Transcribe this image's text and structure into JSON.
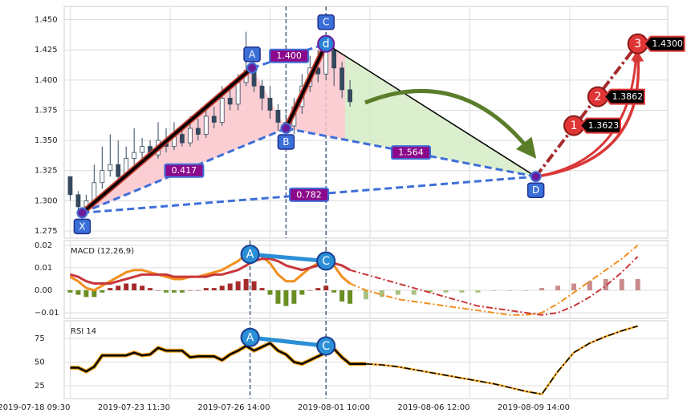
{
  "chart_data": [
    {
      "type": "candlestick",
      "ylim": [
        1.269,
        1.461
      ],
      "yticks": [
        1.275,
        {
          "value": 1.3,
          "label": "1.300"
        },
        1.325,
        {
          "value": 1.35,
          "label": "1.350"
        },
        1.375,
        {
          "value": 1.4,
          "label": "1.400"
        },
        1.425,
        {
          "value": 1.45,
          "label": "1.450"
        }
      ],
      "grid": true,
      "x": [
        0,
        4,
        8,
        12,
        16,
        20,
        24,
        28,
        32,
        36,
        40,
        44,
        48,
        52,
        56,
        60,
        64,
        68,
        72,
        76,
        80,
        84,
        88,
        92,
        96,
        100,
        104,
        108,
        112,
        116,
        120,
        124,
        128,
        132,
        136,
        140
      ],
      "open": [
        1.32,
        1.305,
        1.295,
        1.3,
        1.315,
        1.325,
        1.33,
        1.32,
        1.335,
        1.34,
        1.345,
        1.338,
        1.35,
        1.345,
        1.355,
        1.348,
        1.36,
        1.355,
        1.37,
        1.365,
        1.385,
        1.38,
        1.398,
        1.408,
        1.395,
        1.385,
        1.375,
        1.365,
        1.362,
        1.378,
        1.395,
        1.41,
        1.405,
        1.425,
        1.41,
        1.392
      ],
      "high": [
        1.32,
        1.308,
        1.305,
        1.33,
        1.345,
        1.355,
        1.35,
        1.345,
        1.36,
        1.352,
        1.35,
        1.365,
        1.36,
        1.365,
        1.362,
        1.37,
        1.368,
        1.38,
        1.378,
        1.395,
        1.398,
        1.405,
        1.44,
        1.425,
        1.4,
        1.395,
        1.38,
        1.372,
        1.385,
        1.405,
        1.42,
        1.425,
        1.432,
        1.428,
        1.415,
        1.4
      ],
      "low": [
        1.3,
        1.292,
        1.29,
        1.298,
        1.31,
        1.32,
        1.315,
        1.318,
        1.33,
        1.335,
        1.335,
        1.335,
        1.34,
        1.342,
        1.345,
        1.345,
        1.35,
        1.352,
        1.36,
        1.362,
        1.375,
        1.375,
        1.395,
        1.39,
        1.375,
        1.368,
        1.358,
        1.358,
        1.355,
        1.372,
        1.39,
        1.398,
        1.4,
        1.395,
        1.385,
        1.378
      ],
      "close": [
        1.305,
        1.295,
        1.3,
        1.315,
        1.325,
        1.33,
        1.32,
        1.335,
        1.34,
        1.345,
        1.338,
        1.35,
        1.345,
        1.355,
        1.348,
        1.36,
        1.355,
        1.37,
        1.365,
        1.385,
        1.38,
        1.398,
        1.408,
        1.395,
        1.385,
        1.375,
        1.365,
        1.362,
        1.378,
        1.395,
        1.41,
        1.405,
        1.425,
        1.41,
        1.392,
        1.382
      ],
      "up_color": "#ffffff",
      "down_color": "#34495e",
      "vlines": [
        108,
        128
      ],
      "pattern": {
        "labels": [
          "X",
          "A",
          "B",
          "C",
          "D"
        ],
        "x": [
          6,
          91,
          108,
          128,
          233
        ],
        "y": [
          1.29,
          1.41,
          1.36,
          1.43,
          1.32
        ],
        "d_label": "d",
        "ratio_labels": [
          "0.417",
          "1.400",
          "1.564",
          "0.782"
        ],
        "fill_color": "#f9c6cb",
        "projection_fill_color": "#d5ecc6",
        "leg_color": "#000000",
        "ratio_line_color": "#3f6fd8"
      },
      "targets": {
        "names": [
          "1",
          "2",
          "3"
        ],
        "x": [
          252,
          264,
          284
        ],
        "values": [
          1.3623,
          1.3862,
          1.43
        ],
        "value_labels": [
          "1.3623",
          "1.3862",
          "1.4300"
        ],
        "color": "#e03535"
      }
    },
    {
      "type": "macd",
      "title": "MACD (12,26,9)",
      "ylim": [
        -0.0125,
        0.0221
      ],
      "yticks": [
        {
          "value": -0.01,
          "label": "−0.01"
        },
        {
          "value": 0,
          "label": "0.00"
        },
        0.01,
        0.02
      ],
      "grid": true,
      "lines": [
        {
          "color": "#f28e1c",
          "x": [
            0,
            4,
            8,
            12,
            16,
            20,
            24,
            28,
            32,
            36,
            40,
            44,
            48,
            52,
            56,
            60,
            64,
            68,
            72,
            76,
            80,
            84,
            88,
            92,
            96,
            100,
            104,
            108,
            112,
            116,
            120,
            124,
            128,
            132,
            136,
            140
          ],
          "values": [
            0.006,
            0.004,
            0.001,
            0,
            0.002,
            0.004,
            0.006,
            0.008,
            0.009,
            0.009,
            0.008,
            0.007,
            0.006,
            0.005,
            0.005,
            0.006,
            0.006,
            0.007,
            0.008,
            0.009,
            0.011,
            0.013,
            0.016,
            0.017,
            0.015,
            0.012,
            0.007,
            0.004,
            0.004,
            0.007,
            0.01,
            0.012,
            0.014,
            0.011,
            0.006,
            0.003
          ]
        },
        {
          "color": "#c8373b",
          "x": [
            0,
            4,
            8,
            12,
            16,
            20,
            24,
            28,
            32,
            36,
            40,
            44,
            48,
            52,
            56,
            60,
            64,
            68,
            72,
            76,
            80,
            84,
            88,
            92,
            96,
            100,
            104,
            108,
            112,
            116,
            120,
            124,
            128,
            132,
            136,
            140
          ],
          "values": [
            0.007,
            0.006,
            0.004,
            0.003,
            0.003,
            0.003,
            0.004,
            0.005,
            0.006,
            0.007,
            0.007,
            0.007,
            0.007,
            0.006,
            0.006,
            0.006,
            0.006,
            0.006,
            0.007,
            0.007,
            0.008,
            0.009,
            0.011,
            0.013,
            0.014,
            0.014,
            0.013,
            0.011,
            0.01,
            0.009,
            0.01,
            0.011,
            0.012,
            0.012,
            0.011,
            0.009
          ]
        }
      ],
      "projections": [
        {
          "color": "#f28e1c",
          "x": [
            140,
            148,
            156,
            164,
            172,
            180,
            188,
            196,
            204,
            212,
            220,
            228,
            236,
            244,
            252,
            260,
            268,
            276,
            284
          ],
          "values": [
            0.003,
            0,
            -0.002,
            -0.004,
            -0.005,
            -0.006,
            -0.007,
            -0.008,
            -0.009,
            -0.01,
            -0.011,
            -0.011,
            -0.01,
            -0.006,
            -0.001,
            0.004,
            0.009,
            0.014,
            0.02
          ]
        },
        {
          "color": "#c8373b",
          "x": [
            140,
            148,
            156,
            164,
            172,
            180,
            188,
            196,
            204,
            212,
            220,
            228,
            236,
            244,
            252,
            260,
            268,
            276,
            284
          ],
          "values": [
            0.009,
            0.007,
            0.005,
            0.003,
            0.001,
            -0.001,
            -0.003,
            -0.005,
            -0.007,
            -0.008,
            -0.009,
            -0.01,
            -0.011,
            -0.01,
            -0.007,
            -0.003,
            0.002,
            0.008,
            0.015
          ]
        }
      ],
      "histogram": {
        "x": [
          0,
          4,
          8,
          12,
          16,
          20,
          24,
          28,
          32,
          36,
          40,
          44,
          48,
          52,
          56,
          60,
          64,
          68,
          72,
          76,
          80,
          84,
          88,
          92,
          96,
          100,
          104,
          108,
          112,
          116,
          120,
          124,
          128,
          132,
          136,
          140
        ],
        "values": [
          -0.001,
          -0.002,
          -0.003,
          -0.003,
          -0.001,
          0.001,
          0.002,
          0.003,
          0.003,
          0.002,
          0.001,
          0,
          -0.001,
          -0.001,
          -0.001,
          0,
          0,
          0.001,
          0.001,
          0.002,
          0.003,
          0.004,
          0.005,
          0.004,
          0.001,
          -0.002,
          -0.006,
          -0.007,
          -0.006,
          -0.002,
          0,
          0.001,
          0.002,
          -0.001,
          -0.005,
          -0.006
        ],
        "positive_color": "#a52a2a",
        "negative_color": "#6b8e23"
      },
      "histogram_projection": {
        "x": [
          148,
          156,
          164,
          172,
          180,
          188,
          196,
          204,
          212,
          220,
          228,
          236,
          244,
          252,
          260,
          268,
          276,
          284
        ],
        "values": [
          -0.004,
          -0.003,
          -0.002,
          -0.002,
          -0.001,
          -0.001,
          -0.001,
          -0.001,
          0,
          0,
          0,
          0.001,
          0.002,
          0.003,
          0.004,
          0.005,
          0.005,
          0.005
        ],
        "positive_color": "#c98b8b",
        "negative_color": "#a9c17e"
      },
      "markers": {
        "names": [
          "A",
          "C"
        ],
        "x": [
          90,
          128
        ],
        "values": [
          0.016,
          0.013
        ],
        "color": "#2a8fd6"
      },
      "vlines": [
        90,
        128
      ]
    },
    {
      "type": "rsi",
      "title": "RSI 14",
      "ylim": [
        11.4,
        93.6
      ],
      "yticks": [
        25,
        50,
        75
      ],
      "grid": true,
      "xlim": [
        -3,
        299
      ],
      "xticks": [
        {
          "value": 0,
          "label": "2019-07-18 09:30"
        },
        {
          "value": 50,
          "label": "2019-07-23 11:30"
        },
        {
          "value": 100,
          "label": "2019-07-26 14:00"
        },
        {
          "value": 150,
          "label": "2019-08-01 10:00"
        },
        {
          "value": 200,
          "label": "2019-08-06 12:00"
        },
        {
          "value": 250,
          "label": "2019-08-09 14:00"
        }
      ],
      "line": {
        "color": "#000000",
        "edge_color": "#f5a623",
        "x": [
          0,
          4,
          8,
          12,
          16,
          20,
          24,
          28,
          32,
          36,
          40,
          44,
          48,
          52,
          56,
          60,
          64,
          68,
          72,
          76,
          80,
          84,
          88,
          92,
          96,
          100,
          104,
          108,
          112,
          116,
          120,
          124,
          128,
          132,
          136,
          140,
          144,
          148
        ],
        "values": [
          44,
          44,
          40,
          45,
          57,
          57,
          57,
          57,
          60,
          57,
          58,
          65,
          62,
          62,
          62,
          55,
          56,
          56,
          56,
          52,
          58,
          62,
          67,
          62,
          66,
          70,
          62,
          58,
          50,
          48,
          52,
          56,
          60,
          64,
          55,
          48,
          48,
          48
        ]
      },
      "projection": {
        "x": [
          148,
          156,
          164,
          172,
          180,
          188,
          196,
          204,
          212,
          220,
          228,
          236,
          244,
          252,
          260,
          268,
          276,
          284
        ],
        "values": [
          48,
          47,
          45,
          42,
          39,
          36,
          33,
          30,
          27,
          23,
          19,
          16,
          40,
          60,
          70,
          77,
          83,
          88
        ]
      },
      "markers": {
        "names": [
          "A",
          "C"
        ],
        "x": [
          90,
          128
        ],
        "values": [
          76,
          67
        ],
        "color": "#2a8fd6"
      },
      "vlines": [
        90,
        128
      ]
    }
  ]
}
